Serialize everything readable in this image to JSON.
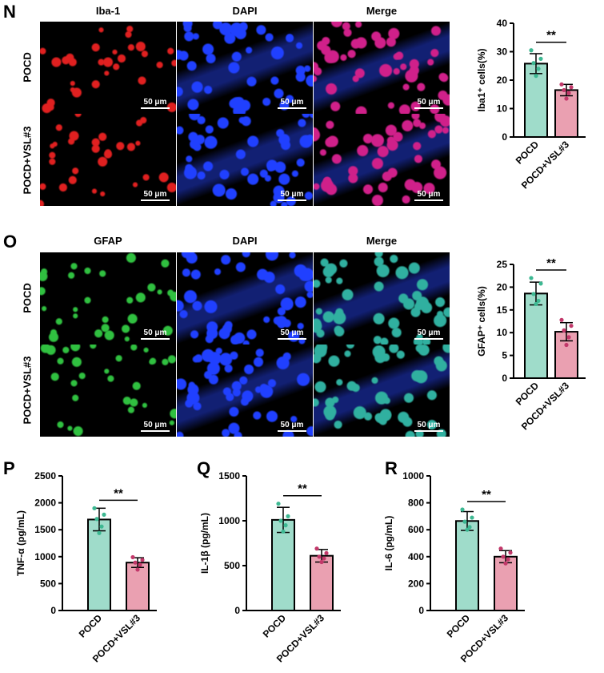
{
  "panels": {
    "N": {
      "letter": "N",
      "columns": [
        "Iba-1",
        "DAPI",
        "Merge"
      ],
      "rows": [
        "POCD",
        "POCD+VSL#3"
      ],
      "scale": "50 μm",
      "channel_colors": [
        "#e02020",
        "#2040ff",
        "#d0208a"
      ]
    },
    "O": {
      "letter": "O",
      "columns": [
        "GFAP",
        "DAPI",
        "Merge"
      ],
      "rows": [
        "POCD",
        "POCD+VSL#3"
      ],
      "scale": "50 μm",
      "channel_colors": [
        "#30c040",
        "#2040ff",
        "#30b0a0"
      ]
    },
    "P": {
      "letter": "P"
    },
    "Q": {
      "letter": "Q"
    },
    "R": {
      "letter": "R"
    }
  },
  "colors": {
    "teal": "#9fdcca",
    "pink": "#eaa0b1",
    "teal_dot": "#3db892",
    "pink_dot": "#c2386a"
  },
  "chart_data": [
    {
      "id": "N",
      "type": "bar",
      "categories": [
        "POCD",
        "POCD+VSL#3"
      ],
      "values": [
        25.8,
        16.5
      ],
      "errors": [
        3.5,
        2.0
      ],
      "points": [
        [
          30.5,
          27.5,
          26,
          24,
          21.5
        ],
        [
          18.5,
          17.5,
          16.5,
          15.5,
          13.5
        ]
      ],
      "ylabel": "Iba1⁺ cells(%)",
      "ylim": [
        0,
        40
      ],
      "yticks": [
        0,
        10,
        20,
        30,
        40
      ],
      "significance": "**"
    },
    {
      "id": "O",
      "type": "bar",
      "categories": [
        "POCD",
        "POCD+VSL#3"
      ],
      "values": [
        18.6,
        10.2
      ],
      "errors": [
        2.5,
        2.0
      ],
      "points": [
        [
          22,
          20.8,
          18.5,
          17,
          16.3
        ],
        [
          12.8,
          11.5,
          10.5,
          9,
          7.3
        ]
      ],
      "ylabel": "GFAP⁺ cells(%)",
      "ylim": [
        0,
        25
      ],
      "yticks": [
        0,
        5,
        10,
        15,
        20,
        25
      ],
      "significance": "**"
    },
    {
      "id": "P",
      "type": "bar",
      "categories": [
        "POCD",
        "POCD+VSL#3"
      ],
      "values": [
        1690,
        890
      ],
      "errors": [
        210,
        90
      ],
      "points": [
        [
          1900,
          1780,
          1700,
          1560,
          1440
        ],
        [
          990,
          940,
          890,
          850,
          760
        ]
      ],
      "ylabel": "TNF-α (pg/mL)",
      "ylim": [
        0,
        2500
      ],
      "yticks": [
        0,
        500,
        1000,
        1500,
        2000,
        2500
      ],
      "significance": "**"
    },
    {
      "id": "Q",
      "type": "bar",
      "categories": [
        "POCD",
        "POCD+VSL#3"
      ],
      "values": [
        1010,
        610
      ],
      "errors": [
        140,
        70
      ],
      "points": [
        [
          1190,
          1050,
          1000,
          950,
          880
        ],
        [
          690,
          640,
          600,
          580,
          540
        ]
      ],
      "ylabel": "IL-1β (pg/mL)",
      "ylim": [
        0,
        1500
      ],
      "yticks": [
        0,
        500,
        1000,
        1500
      ],
      "significance": "**"
    },
    {
      "id": "R",
      "type": "bar",
      "categories": [
        "POCD",
        "POCD+VSL#3"
      ],
      "values": [
        665,
        400
      ],
      "errors": [
        70,
        45
      ],
      "points": [
        [
          750,
          690,
          660,
          620,
          600
        ],
        [
          460,
          430,
          400,
          380,
          350
        ]
      ],
      "ylabel": "IL-6 (pg/mL)",
      "ylim": [
        0,
        1000
      ],
      "yticks": [
        0,
        200,
        400,
        600,
        800,
        1000
      ],
      "significance": "**"
    }
  ]
}
